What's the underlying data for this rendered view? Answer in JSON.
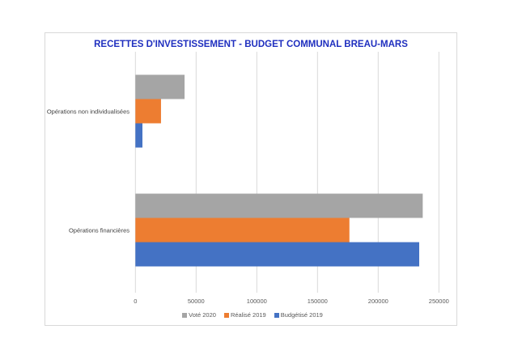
{
  "chart_data": {
    "type": "bar",
    "orientation": "horizontal",
    "title": "RECETTES D'INVESTISSEMENT - BUDGET COMMUNAL BREAU-MARS",
    "categories": [
      "Opérations non individualisées",
      "Opérations financières"
    ],
    "series": [
      {
        "name": "Voté 2020",
        "color": "#a5a5a5",
        "values": [
          40500,
          236700
        ]
      },
      {
        "name": "Réalisé 2019",
        "color": "#ed7d31",
        "values": [
          21100,
          176300
        ]
      },
      {
        "name": "Budgétisé 2019",
        "color": "#4472c4",
        "values": [
          5800,
          233800
        ]
      }
    ],
    "xlim": [
      0,
      250000
    ],
    "xticks": [
      "0",
      "50000",
      "100000",
      "150000",
      "200000",
      "250000"
    ],
    "grid": true,
    "legend": "bottom",
    "title_color": "#1f2fbf"
  }
}
